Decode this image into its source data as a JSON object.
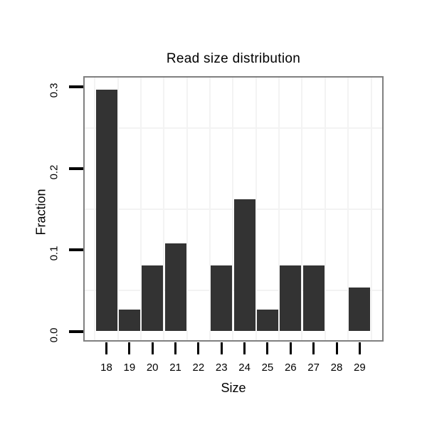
{
  "title": "Read size distribution",
  "colors": {
    "bar": "#333333",
    "panel_border": "#808080",
    "grid_minor": "#f3f3f3",
    "tick": "#000000",
    "background": "#ffffff",
    "text": "#000000"
  },
  "chart_data": {
    "type": "bar",
    "title": "Read size distribution",
    "xlabel": "Size",
    "ylabel": "Fraction",
    "categories": [
      18,
      19,
      20,
      21,
      22,
      23,
      24,
      25,
      26,
      27,
      28,
      29
    ],
    "values": [
      0.297,
      0.027,
      0.081,
      0.108,
      0,
      0.081,
      0.162,
      0.027,
      0.081,
      0.081,
      0,
      0.054
    ],
    "x_tick_labels": [
      "18",
      "19",
      "20",
      "21",
      "22",
      "23",
      "24",
      "25",
      "26",
      "27",
      "28",
      "29"
    ],
    "y_tick_labels": [
      "0.0",
      "0.1",
      "0.2",
      "0.3"
    ],
    "y_tick_values": [
      0,
      0.1,
      0.2,
      0.3
    ],
    "xlim": [
      17,
      30
    ],
    "ylim": [
      0,
      0.313
    ],
    "x_minor_gridlines": [
      17.5,
      18.5,
      19.5,
      20.5,
      21.5,
      22.5,
      23.5,
      24.5,
      25.5,
      26.5,
      27.5,
      28.5,
      29.5
    ],
    "y_minor_gridlines": [
      0.05,
      0.15,
      0.25
    ],
    "grid": "minor-only",
    "legend": "none"
  }
}
